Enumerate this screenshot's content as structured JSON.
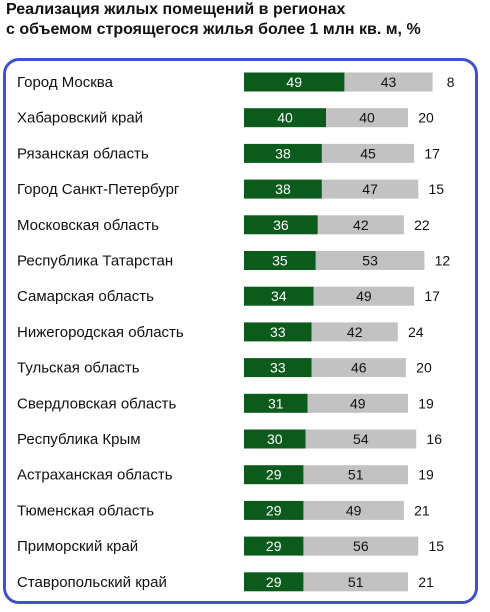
{
  "chart_data": {
    "type": "bar",
    "stacked": true,
    "horizontal": true,
    "title_line1": "Реализация жилых помещений в регионах",
    "title_line2": "с объемом строящегося жилья более 1 млн кв. м, %",
    "categories": [
      "Город Москва",
      "Хабаровский край",
      "Рязанская область",
      "Город Санкт-Петербург",
      "Московская область",
      "Республика Татарстан",
      "Самарская область",
      "Нижегородская область",
      "Тульская область",
      "Свердловская область",
      "Республика Крым",
      "Астраханская область",
      "Тюменская область",
      "Приморский край",
      "Ставропольский край"
    ],
    "series": [
      {
        "values": [
          49,
          40,
          38,
          38,
          36,
          35,
          34,
          33,
          33,
          31,
          30,
          29,
          29,
          29,
          29
        ],
        "color": "#0c5a1c"
      },
      {
        "values": [
          43,
          40,
          45,
          47,
          42,
          53,
          49,
          42,
          46,
          49,
          54,
          51,
          49,
          56,
          51
        ],
        "color": "#c2c2c2"
      },
      {
        "values": [
          8,
          20,
          17,
          15,
          22,
          12,
          17,
          24,
          20,
          19,
          16,
          19,
          21,
          15,
          21
        ],
        "color": "#ffffff"
      }
    ],
    "xlim": [
      0,
      100
    ],
    "legend": "none",
    "grid": false
  }
}
